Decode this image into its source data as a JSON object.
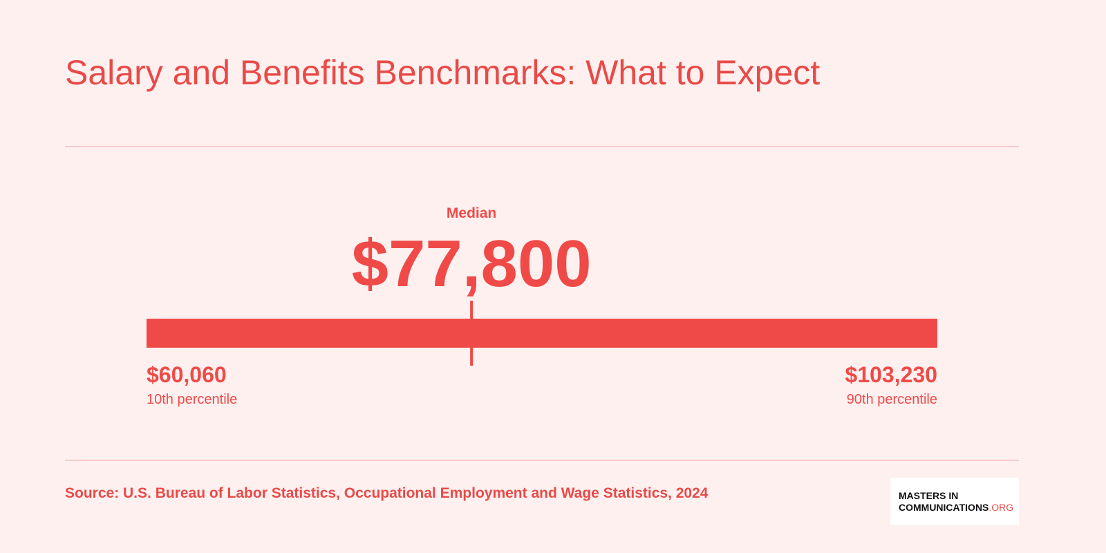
{
  "chart_data": {
    "type": "range",
    "title": "Salary and Benefits Benchmarks: What to Expect",
    "low": {
      "value": 60060,
      "label": "$60,060",
      "caption": "10th percentile"
    },
    "median": {
      "value": 77800,
      "label": "$77,800",
      "caption": "Median"
    },
    "high": {
      "value": 103230,
      "label": "$103,230",
      "caption": "90th percentile"
    },
    "color": "#ef4a47",
    "source": "Source: U.S. Bureau of Labor Statistics, Occupational Employment and Wage Statistics, 2024"
  },
  "logo": {
    "line1": "MASTERS IN",
    "line2": "COMMUNICATIONS",
    "suffix": ".ORG"
  }
}
